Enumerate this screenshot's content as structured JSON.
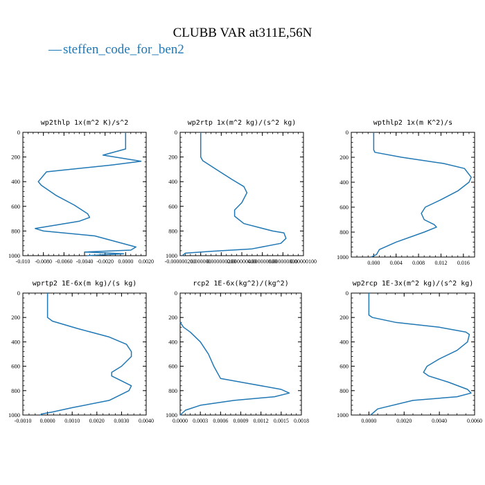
{
  "figure": {
    "title": "CLUBB VAR at311E,56N",
    "legend_marker": "—",
    "legend_label": "steffen_code_for_ben2",
    "line_color": "#1f77b4"
  },
  "chart_data": [
    {
      "type": "line",
      "title": "wp2thlp  1x(m^2 K)/s^2",
      "xlim": [
        -0.01,
        0.002
      ],
      "ylim": [
        1000,
        0
      ],
      "xticks": [
        -0.01,
        -0.008,
        -0.006,
        -0.004,
        -0.002,
        0.0,
        0.002
      ],
      "xtick_labels": [
        "-0.010",
        "-0.0080",
        "-0.0060",
        "-0.0040",
        "-0.0020",
        "0.0000",
        "0.0020"
      ],
      "yticks": [
        0,
        200,
        400,
        600,
        800,
        1000
      ],
      "ytick_labels": [
        "0",
        "200",
        "400",
        "600",
        "800",
        "1000"
      ],
      "series": [
        {
          "x": [
            0.0,
            0.0,
            0.0,
            -0.0022,
            0.0015,
            -0.0014,
            -0.0077,
            -0.0085,
            -0.0082,
            -0.0068,
            -0.005,
            -0.0037,
            -0.0035,
            -0.0045,
            -0.007,
            -0.0088,
            -0.008,
            -0.003,
            0.001,
            0.0005,
            -0.004,
            -0.0002,
            -0.0038
          ],
          "y": [
            0,
            70,
            135,
            185,
            235,
            265,
            320,
            400,
            430,
            510,
            590,
            660,
            690,
            720,
            755,
            780,
            800,
            840,
            930,
            955,
            970,
            985,
            1000
          ]
        }
      ]
    },
    {
      "type": "line",
      "title": "wp2rtp  1x(m^2 kg)/(s^2 kg)",
      "xlim": [
        -2e-07,
        1e-06
      ],
      "ylim": [
        1000,
        0
      ],
      "xticks": [
        -2e-07,
        0.0,
        2e-07,
        4e-07,
        6e-07,
        8e-07,
        1e-06
      ],
      "xtick_labels": [
        "-0.000000200",
        "0.000000",
        "0.000000200",
        "0.000000400",
        "0.000000600",
        "0.000000800",
        "0.00000100"
      ],
      "yticks": [
        0,
        200,
        400,
        600,
        800,
        1000
      ],
      "ytick_labels": [
        "0",
        "200",
        "400",
        "600",
        "800",
        "1000"
      ],
      "series": [
        {
          "x": [
            0.0,
            0.0,
            0.0,
            2e-08,
            1.5e-07,
            3e-07,
            4.2e-07,
            4.5e-07,
            4e-07,
            3.3e-07,
            3.3e-07,
            4.2e-07,
            7e-07,
            8.1e-07,
            8.3e-07,
            7.8e-07,
            5e-07,
            1e-07,
            -1.5e-07,
            -1.8e-07
          ],
          "y": [
            0,
            100,
            200,
            230,
            300,
            380,
            440,
            490,
            570,
            630,
            680,
            740,
            800,
            815,
            860,
            900,
            945,
            965,
            980,
            1000
          ]
        }
      ]
    },
    {
      "type": "line",
      "title": "wpthlp2  1x(m K^2)/s",
      "xlim": [
        -0.004,
        0.018
      ],
      "ylim": [
        1000,
        0
      ],
      "xticks": [
        0.0,
        0.004,
        0.008,
        0.012,
        0.016
      ],
      "xtick_labels": [
        "0.000",
        "0.004",
        "0.008",
        "0.012",
        "0.016"
      ],
      "yticks": [
        0,
        200,
        400,
        600,
        800,
        1000
      ],
      "ytick_labels": [
        "0",
        "200",
        "400",
        "600",
        "800",
        "1000"
      ],
      "series": [
        {
          "x": [
            0.0,
            0.0,
            0.0,
            0.0002,
            0.005,
            0.0125,
            0.0162,
            0.0174,
            0.017,
            0.015,
            0.012,
            0.0092,
            0.0085,
            0.009,
            0.0108,
            0.0112,
            0.009,
            0.004,
            0.001,
            0.0005,
            -0.0005
          ],
          "y": [
            0,
            80,
            140,
            160,
            200,
            250,
            290,
            360,
            400,
            470,
            540,
            600,
            650,
            700,
            740,
            760,
            800,
            880,
            940,
            980,
            1000
          ]
        }
      ]
    },
    {
      "type": "line",
      "title": "wprtp2  1E-6x(m kg)/(s kg)",
      "xlim": [
        -0.001,
        0.004
      ],
      "ylim": [
        1000,
        0
      ],
      "xticks": [
        -0.001,
        0.0,
        0.001,
        0.002,
        0.003,
        0.004
      ],
      "xtick_labels": [
        "-0.0010",
        "0.0000",
        "0.0010",
        "0.0020",
        "0.0030",
        "0.0040"
      ],
      "yticks": [
        0,
        200,
        400,
        600,
        800,
        1000
      ],
      "ytick_labels": [
        "0",
        "200",
        "400",
        "600",
        "800",
        "1000"
      ],
      "series": [
        {
          "x": [
            0.0,
            0.0,
            0.0,
            0.0002,
            0.0012,
            0.0025,
            0.0032,
            0.0034,
            0.0034,
            0.003,
            0.0026,
            0.0026,
            0.003,
            0.0034,
            0.0033,
            0.0025,
            0.001,
            0.0002,
            -0.0002,
            -0.0003
          ],
          "y": [
            0,
            100,
            200,
            230,
            290,
            360,
            420,
            480,
            520,
            600,
            650,
            680,
            720,
            760,
            800,
            880,
            940,
            975,
            990,
            1000
          ]
        }
      ]
    },
    {
      "type": "line",
      "title": "rcp2  1E-6x(kg^2)/(kg^2)",
      "xlim": [
        0.0,
        0.0018
      ],
      "ylim": [
        1000,
        0
      ],
      "xticks": [
        0.0,
        0.0003,
        0.0006,
        0.0009,
        0.0012,
        0.0015,
        0.0018
      ],
      "xtick_labels": [
        "0.0000",
        "0.0003",
        "0.0006",
        "0.0009",
        "0.0012",
        "0.0015",
        "0.0018"
      ],
      "yticks": [
        0,
        200,
        400,
        600,
        800,
        1000
      ],
      "ytick_labels": [
        "0",
        "200",
        "400",
        "600",
        "800",
        "1000"
      ],
      "series": [
        {
          "x": [
            0.0,
            5e-05,
            0.00015,
            0.0003,
            0.00042,
            0.0005,
            0.0006,
            0.001,
            0.0015,
            0.00162,
            0.0014,
            0.0008,
            0.0003,
            8e-05,
            0.0
          ],
          "y": [
            240,
            280,
            320,
            400,
            500,
            600,
            700,
            740,
            790,
            820,
            850,
            880,
            920,
            960,
            1000
          ]
        }
      ]
    },
    {
      "type": "line",
      "title": "wp2rcp  1E-3x(m^2 kg)/(s^2 kg)",
      "xlim": [
        -0.001,
        0.006
      ],
      "ylim": [
        1000,
        0
      ],
      "xticks": [
        0.0,
        0.002,
        0.004,
        0.006
      ],
      "xtick_labels": [
        "0.0000",
        "0.0020",
        "0.0040",
        "0.0060"
      ],
      "yticks": [
        0,
        200,
        400,
        600,
        800,
        1000
      ],
      "ytick_labels": [
        "0",
        "200",
        "400",
        "600",
        "800",
        "1000"
      ],
      "series": [
        {
          "x": [
            0.0,
            0.0,
            0.0,
            0.0002,
            0.0015,
            0.004,
            0.0055,
            0.0057,
            0.0056,
            0.005,
            0.004,
            0.0033,
            0.0031,
            0.0034,
            0.0045,
            0.0056,
            0.0058,
            0.005,
            0.0025,
            0.0005,
            0.0001
          ],
          "y": [
            0,
            100,
            180,
            200,
            240,
            280,
            320,
            340,
            400,
            470,
            540,
            600,
            650,
            680,
            730,
            790,
            820,
            850,
            880,
            950,
            1000
          ]
        }
      ]
    }
  ]
}
